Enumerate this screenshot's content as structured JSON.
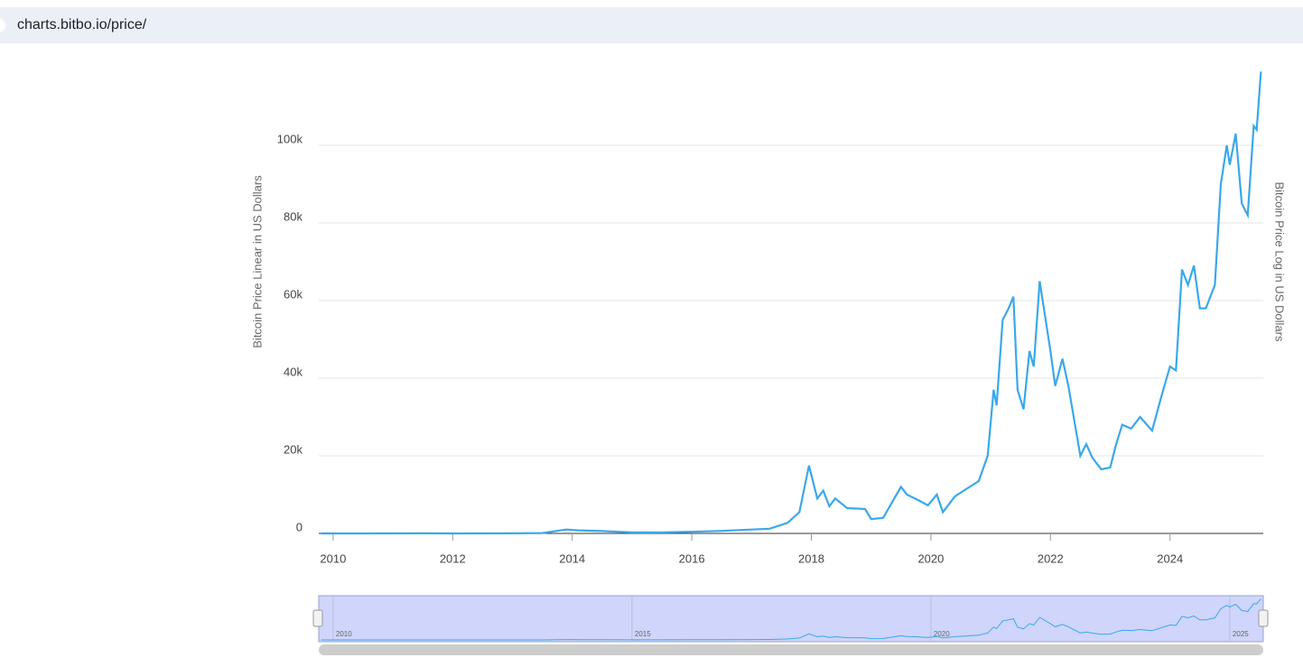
{
  "url": "charts.bitbo.io/price/",
  "chart_data": {
    "type": "line",
    "y_label": "Bitcoin Price Linear in US Dollars",
    "y2_label": "Bitcoin Price Log in US Dollars",
    "color": "#3aa8ea",
    "grid": true,
    "x": [
      2009.8,
      2010.5,
      2011.5,
      2012,
      2013,
      2013.5,
      2013.9,
      2014.1,
      2014.5,
      2015,
      2015.5,
      2016,
      2016.5,
      2017,
      2017.3,
      2017.6,
      2017.8,
      2017.96,
      2018.1,
      2018.2,
      2018.3,
      2018.4,
      2018.6,
      2018.9,
      2019.0,
      2019.2,
      2019.35,
      2019.5,
      2019.6,
      2019.8,
      2019.95,
      2020.1,
      2020.2,
      2020.4,
      2020.6,
      2020.8,
      2020.95,
      2021.05,
      2021.1,
      2021.2,
      2021.3,
      2021.38,
      2021.45,
      2021.55,
      2021.65,
      2021.72,
      2021.82,
      2021.9,
      2022.0,
      2022.08,
      2022.2,
      2022.3,
      2022.4,
      2022.5,
      2022.6,
      2022.7,
      2022.85,
      2023.0,
      2023.1,
      2023.2,
      2023.35,
      2023.5,
      2023.7,
      2023.85,
      2024.0,
      2024.1,
      2024.2,
      2024.3,
      2024.4,
      2024.5,
      2024.6,
      2024.75,
      2024.85,
      2024.95,
      2025.0,
      2025.1,
      2025.2,
      2025.3,
      2025.4,
      2025.45,
      2025.52
    ],
    "values": [
      0,
      0,
      15,
      5,
      13,
      100,
      1000,
      800,
      600,
      250,
      250,
      420,
      650,
      1000,
      1200,
      2700,
      5500,
      17500,
      9000,
      11000,
      7000,
      9000,
      6500,
      6300,
      3700,
      4000,
      8000,
      12000,
      10000,
      8500,
      7200,
      10000,
      5500,
      9500,
      11500,
      13500,
      20000,
      37000,
      33000,
      55000,
      58000,
      61000,
      37000,
      32000,
      47000,
      43000,
      65000,
      57000,
      47000,
      38000,
      45000,
      38000,
      29000,
      20000,
      23000,
      19500,
      16500,
      17000,
      23000,
      28000,
      27000,
      30000,
      26500,
      35000,
      43000,
      42000,
      68000,
      64000,
      69000,
      58000,
      58000,
      64000,
      90000,
      100000,
      95000,
      103000,
      85000,
      82000,
      105000,
      104000,
      119000
    ],
    "xlim": [
      2009.76,
      2025.56
    ],
    "xticks": [
      2010,
      2012,
      2014,
      2016,
      2018,
      2020,
      2022,
      2024
    ],
    "ylim": [
      0,
      120000
    ],
    "yticks": [
      0,
      {
        "value": 20000,
        "label": "20k"
      },
      {
        "value": 40000,
        "label": "40k"
      },
      {
        "value": 60000,
        "label": "60k"
      },
      {
        "value": 80000,
        "label": "80k"
      },
      {
        "value": 100000,
        "label": "100k"
      }
    ],
    "navigator": {
      "xticks": [
        2010,
        2015,
        2020,
        2025
      ]
    }
  }
}
